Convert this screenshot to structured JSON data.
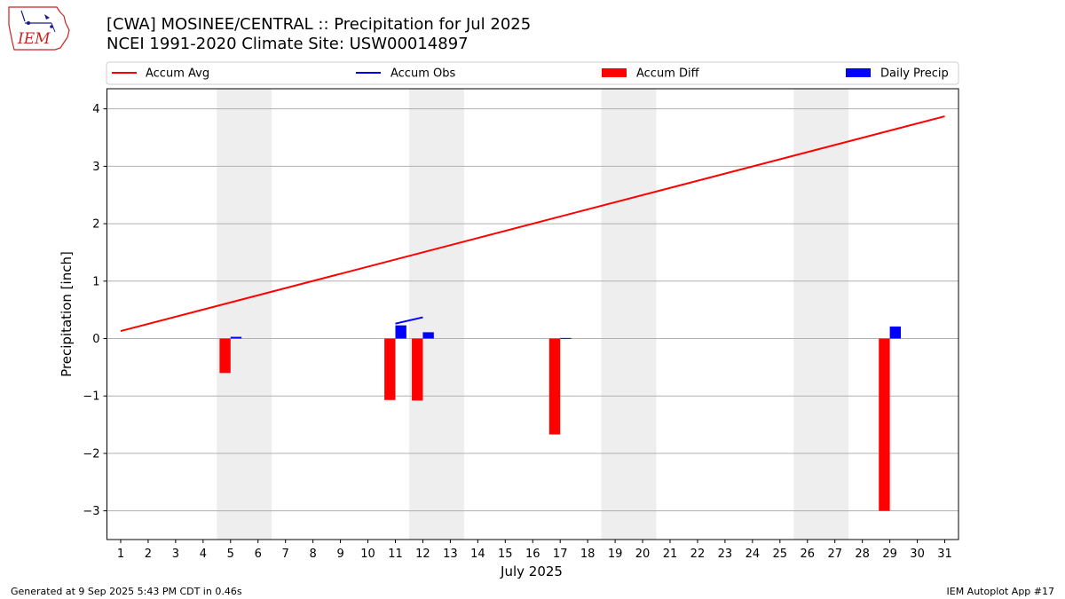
{
  "header": {
    "title_line1": "[CWA] MOSINEE/CENTRAL :: Precipitation for Jul 2025",
    "title_line2": "NCEI 1991-2020 Climate Site: USW00014897",
    "logo_text": "IEM"
  },
  "footer": {
    "generated": "Generated at 9 Sep 2025 5:43 PM CDT in 0.46s",
    "app": "IEM Autoplot App #17"
  },
  "colors": {
    "accum_avg": "#ff0000",
    "accum_obs": "#0000ff",
    "accum_diff": "#ff0000",
    "daily_precip": "#0000ff",
    "weekend_shade": "#eeeeee",
    "grid": "#b0b0b0"
  },
  "chart_data": {
    "type": "bar",
    "xlabel": "July 2025",
    "ylabel": "Precipitation [inch]",
    "xlim": [
      0.5,
      31.5
    ],
    "ylim": [
      -3.5,
      4.35
    ],
    "x_ticks": [
      1,
      2,
      3,
      4,
      5,
      6,
      7,
      8,
      9,
      10,
      11,
      12,
      13,
      14,
      15,
      16,
      17,
      18,
      19,
      20,
      21,
      22,
      23,
      24,
      25,
      26,
      27,
      28,
      29,
      30,
      31
    ],
    "y_ticks": [
      -3,
      -2,
      -1,
      0,
      1,
      2,
      3,
      4
    ],
    "grid": "horizontal",
    "legend_placement": "top",
    "legend": [
      "Accum Avg",
      "Accum Obs",
      "Accum Diff",
      "Daily Precip"
    ],
    "weekend_spans": [
      [
        4.5,
        6.5
      ],
      [
        11.5,
        13.5
      ],
      [
        18.5,
        20.5
      ],
      [
        25.5,
        27.5
      ]
    ],
    "accum_avg": {
      "name": "Accum Avg",
      "x": [
        1,
        31
      ],
      "y": [
        0.13,
        3.87
      ]
    },
    "accum_obs": {
      "name": "Accum Obs",
      "x": [
        11,
        12
      ],
      "y": [
        0.26,
        0.37
      ]
    },
    "accum_diff": {
      "name": "Accum Diff",
      "x": [
        5,
        11,
        12,
        17,
        29
      ],
      "y": [
        -0.6,
        -1.07,
        -1.08,
        -1.67,
        -3.0
      ]
    },
    "daily_precip": {
      "name": "Daily Precip",
      "x": [
        5,
        11,
        12,
        17,
        29
      ],
      "y": [
        0.03,
        0.23,
        0.11,
        0.01,
        0.21
      ]
    }
  }
}
